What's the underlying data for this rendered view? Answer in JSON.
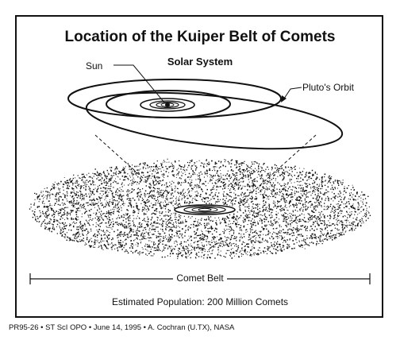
{
  "title": "Location of the Kuiper Belt of Comets",
  "subtitle": "Solar System",
  "labels": {
    "sun": "Sun",
    "pluto_orbit": "Pluto's Orbit",
    "comet_belt": "Comet Belt"
  },
  "population": "Estimated Population:  200 Million Comets",
  "credit": "PR95-26 • ST ScI OPO • June 14, 1995 • A. Cochran (U.TX), NASA",
  "colors": {
    "ink": "#111111",
    "background": "#ffffff"
  }
}
